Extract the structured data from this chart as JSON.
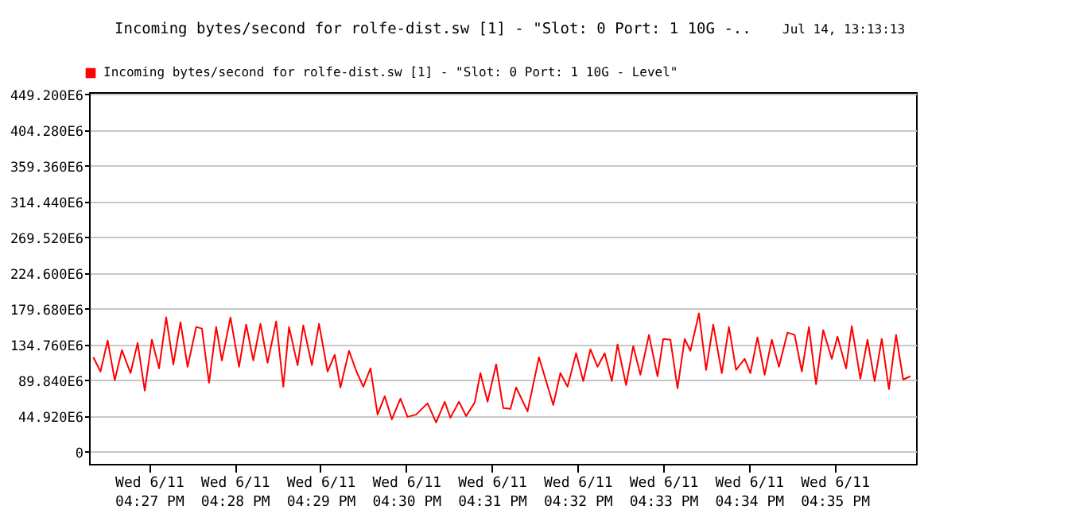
{
  "chart_data": {
    "type": "line",
    "title": "Incoming bytes/second for rolfe-dist.sw [1] - \"Slot: 0 Port: 1 10G -..",
    "annotations": [
      "Jul 14, 13:13:13"
    ],
    "series": [
      {
        "name": "Incoming bytes/second for rolfe-dist.sw [1] - \"Slot: 0 Port: 1 10G - Level\"",
        "color": "#ff0000",
        "x": [
          "--06-11T16:26:21",
          "--06-11T16:26:26",
          "--06-11T16:26:31",
          "--06-11T16:26:36",
          "--06-11T16:26:41",
          "--06-11T16:26:47",
          "--06-11T16:26:52",
          "--06-11T16:26:57",
          "--06-11T16:27:02",
          "--06-11T16:27:07",
          "--06-11T16:27:12",
          "--06-11T16:27:17",
          "--06-11T16:27:22",
          "--06-11T16:27:27",
          "--06-11T16:27:33",
          "--06-11T16:27:37",
          "--06-11T16:27:42",
          "--06-11T16:27:47",
          "--06-11T16:27:51",
          "--06-11T16:27:57",
          "--06-11T16:28:03",
          "--06-11T16:28:08",
          "--06-11T16:28:13",
          "--06-11T16:28:18",
          "--06-11T16:28:23",
          "--06-11T16:28:29",
          "--06-11T16:28:34",
          "--06-11T16:28:38",
          "--06-11T16:28:44",
          "--06-11T16:28:48",
          "--06-11T16:28:54",
          "--06-11T16:28:59",
          "--06-11T16:29:05",
          "--06-11T16:29:10",
          "--06-11T16:29:14",
          "--06-11T16:29:20",
          "--06-11T16:29:25",
          "--06-11T16:29:30",
          "--06-11T16:29:35",
          "--06-11T16:29:40",
          "--06-11T16:29:45",
          "--06-11T16:29:50",
          "--06-11T16:29:56",
          "--06-11T16:30:01",
          "--06-11T16:30:07",
          "--06-11T16:30:15",
          "--06-11T16:30:21",
          "--06-11T16:30:27",
          "--06-11T16:30:31",
          "--06-11T16:30:37",
          "--06-11T16:30:42",
          "--06-11T16:30:48",
          "--06-11T16:30:52",
          "--06-11T16:30:57",
          "--06-11T16:31:03",
          "--06-11T16:31:08",
          "--06-11T16:31:13",
          "--06-11T16:31:17",
          "--06-11T16:31:25",
          "--06-11T16:31:33",
          "--06-11T16:31:43",
          "--06-11T16:31:48",
          "--06-11T16:31:53",
          "--06-11T16:31:59",
          "--06-11T16:32:04",
          "--06-11T16:32:09",
          "--06-11T16:32:14",
          "--06-11T16:32:19",
          "--06-11T16:32:24",
          "--06-11T16:32:28",
          "--06-11T16:32:34",
          "--06-11T16:32:39",
          "--06-11T16:32:44",
          "--06-11T16:32:50",
          "--06-11T16:32:56",
          "--06-11T16:33:00",
          "--06-11T16:33:05",
          "--06-11T16:33:10",
          "--06-11T16:33:15",
          "--06-11T16:33:19",
          "--06-11T16:33:25",
          "--06-11T16:33:30",
          "--06-11T16:33:35",
          "--06-11T16:33:41",
          "--06-11T16:33:46",
          "--06-11T16:33:51",
          "--06-11T16:33:57",
          "--06-11T16:34:01",
          "--06-11T16:34:06",
          "--06-11T16:34:11",
          "--06-11T16:34:16",
          "--06-11T16:34:21",
          "--06-11T16:34:27",
          "--06-11T16:34:32",
          "--06-11T16:34:37",
          "--06-11T16:34:42",
          "--06-11T16:34:47",
          "--06-11T16:34:52",
          "--06-11T16:34:58",
          "--06-11T16:35:02",
          "--06-11T16:35:08",
          "--06-11T16:35:12",
          "--06-11T16:35:18",
          "--06-11T16:35:23",
          "--06-11T16:35:28",
          "--06-11T16:35:33",
          "--06-11T16:35:38",
          "--06-11T16:35:43",
          "--06-11T16:35:48",
          "--06-11T16:35:53"
        ],
        "values": [
          119000000,
          101000000,
          140000000,
          90000000,
          128000000,
          99000000,
          137000000,
          77000000,
          141000000,
          105000000,
          169000000,
          110000000,
          163000000,
          107000000,
          157000000,
          155000000,
          87000000,
          157000000,
          115000000,
          169000000,
          107000000,
          160000000,
          115000000,
          161000000,
          112000000,
          164000000,
          82000000,
          157000000,
          109000000,
          159000000,
          109000000,
          161000000,
          101000000,
          122000000,
          81000000,
          127000000,
          102000000,
          82000000,
          105000000,
          47000000,
          70000000,
          41000000,
          67000000,
          44000000,
          47000000,
          61000000,
          37000000,
          63000000,
          43000000,
          63000000,
          45000000,
          62000000,
          99000000,
          63000000,
          110000000,
          55000000,
          54000000,
          81000000,
          51000000,
          119000000,
          59000000,
          99000000,
          82000000,
          124000000,
          89000000,
          129000000,
          107000000,
          124000000,
          89000000,
          135000000,
          84000000,
          133000000,
          97000000,
          147000000,
          95000000,
          142000000,
          141000000,
          80000000,
          142000000,
          127000000,
          174000000,
          103000000,
          160000000,
          99000000,
          157000000,
          103000000,
          117000000,
          99000000,
          144000000,
          97000000,
          141000000,
          107000000,
          150000000,
          147000000,
          101000000,
          157000000,
          85000000,
          153000000,
          117000000,
          145000000,
          105000000,
          158000000,
          92000000,
          141000000,
          89000000,
          142000000,
          79000000,
          147000000,
          91000000,
          95000000
        ]
      }
    ],
    "xlim": [
      "--06-11T16:26:18",
      "--06-11T16:35:57"
    ],
    "xticks": [
      {
        "value": "--06-11T16:27",
        "label": "Wed 6/11\n04:27 PM"
      },
      {
        "value": "--06-11T16:28",
        "label": "Wed 6/11\n04:28 PM"
      },
      {
        "value": "--06-11T16:29",
        "label": "Wed 6/11\n04:29 PM"
      },
      {
        "value": "--06-11T16:30",
        "label": "Wed 6/11\n04:30 PM"
      },
      {
        "value": "--06-11T16:31",
        "label": "Wed 6/11\n04:31 PM"
      },
      {
        "value": "--06-11T16:32",
        "label": "Wed 6/11\n04:32 PM"
      },
      {
        "value": "--06-11T16:33",
        "label": "Wed 6/11\n04:33 PM"
      },
      {
        "value": "--06-11T16:34",
        "label": "Wed 6/11\n04:34 PM"
      },
      {
        "value": "--06-11T16:35",
        "label": "Wed 6/11\n04:35 PM"
      }
    ],
    "ylim": [
      -15000000,
      452000000
    ],
    "yticks": [
      0,
      {
        "value": 44920000,
        "label": "44.920E6"
      },
      {
        "value": 89840000,
        "label": "89.840E6"
      },
      {
        "value": 134760000,
        "label": "134.760E6"
      },
      {
        "value": 179680000,
        "label": "179.680E6"
      },
      {
        "value": 224600000,
        "label": "224.600E6"
      },
      {
        "value": 269520000,
        "label": "269.520E6"
      },
      {
        "value": 314440000,
        "label": "314.440E6"
      },
      {
        "value": 359360000,
        "label": "359.360E6"
      },
      {
        "value": 404280000,
        "label": "404.280E6"
      },
      {
        "value": 449200000,
        "label": "449.200E6"
      }
    ],
    "grid": "y",
    "legend": "top left",
    "marker": "none",
    "line_style": "solid"
  }
}
